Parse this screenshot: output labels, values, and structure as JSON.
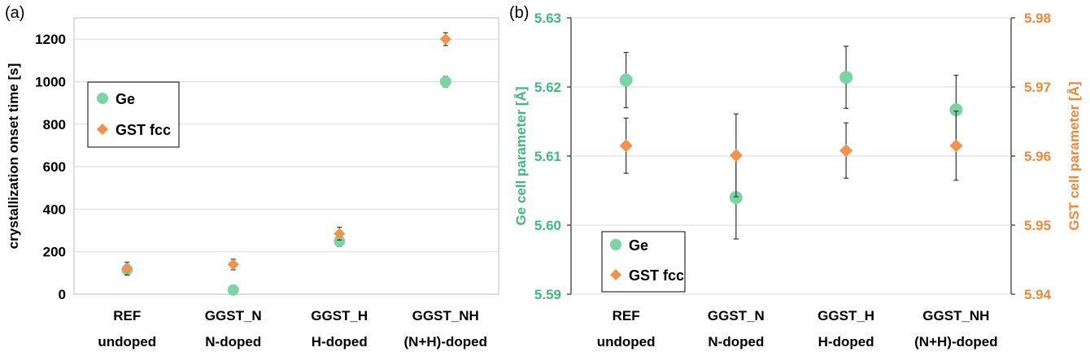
{
  "colors": {
    "ge": "#79d6a3",
    "gst": "#f4924a",
    "ge_axis": "#3dbb7b",
    "gst_axis": "#f0883a",
    "grid": "#d9d9d9",
    "err": "#333333"
  },
  "panel_a": {
    "label": "(a)"
  },
  "panel_b": {
    "label": "(b)"
  },
  "chart_data": [
    {
      "type": "scatter",
      "panel": "(a)",
      "categories": [
        [
          "REF",
          "undoped"
        ],
        [
          "GGST_N",
          "N-doped"
        ],
        [
          "GGST_H",
          "H-doped"
        ],
        [
          "GGST_NH",
          "(N+H)-doped"
        ]
      ],
      "ylabel": "crystallization onset time [s]",
      "ylim": [
        0,
        1300
      ],
      "yticks": [
        0,
        200,
        400,
        600,
        800,
        1000,
        1200
      ],
      "grid": true,
      "legend": "upper-left",
      "series": [
        {
          "name": "Ge",
          "marker": "circle",
          "values": [
            115,
            20,
            250,
            1000
          ],
          "err": [
            25,
            20,
            25,
            25
          ]
        },
        {
          "name": "GST fcc",
          "marker": "diamond",
          "values": [
            120,
            140,
            285,
            1200
          ],
          "err": [
            30,
            25,
            30,
            30
          ]
        }
      ]
    },
    {
      "type": "scatter",
      "panel": "(b)",
      "categories": [
        [
          "REF",
          "undoped"
        ],
        [
          "GGST_N",
          "N-doped"
        ],
        [
          "GGST_H",
          "H-doped"
        ],
        [
          "GGST_NH",
          "(N+H)-doped"
        ]
      ],
      "ylabel": "Ge cell parameter [Å]",
      "ylim": [
        5.59,
        5.63
      ],
      "yticks": [
        "5.59",
        "5.60",
        "5.61",
        "5.62",
        "5.63"
      ],
      "y2label": "GST cell parameter [Å]",
      "y2lim": [
        5.94,
        5.98
      ],
      "y2ticks": [
        "5.94",
        "5.95",
        "5.96",
        "5.97",
        "5.98"
      ],
      "grid": true,
      "legend": "lower-left",
      "series": [
        {
          "name": "Ge",
          "marker": "circle",
          "axis": "left",
          "values": [
            5.621,
            5.604,
            5.6214,
            5.6167
          ],
          "err": [
            0.004,
            0.006,
            0.0045,
            0.005
          ]
        },
        {
          "name": "GST fcc",
          "marker": "diamond",
          "axis": "right",
          "values": [
            5.9615,
            5.9601,
            5.9608,
            5.9615
          ],
          "err": [
            0.004,
            0.006,
            0.004,
            0.005
          ]
        }
      ]
    }
  ]
}
